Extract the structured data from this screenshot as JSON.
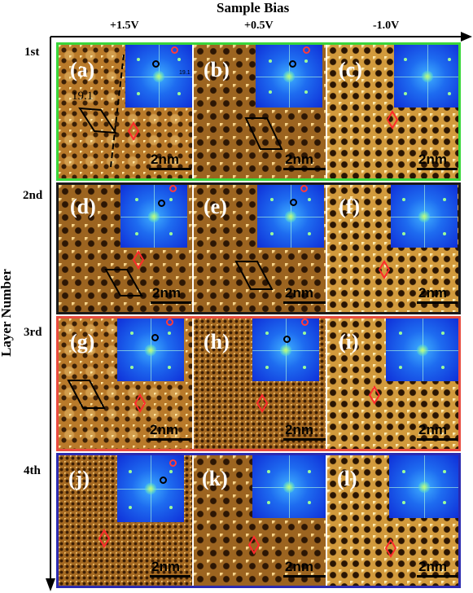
{
  "header": {
    "title": "Sample Bias"
  },
  "biases": [
    "+1.5V",
    "+0.5V",
    "-1.0V"
  ],
  "axis": {
    "ylabel": "Layer Number"
  },
  "layers": [
    "1st",
    "2nd",
    "3rd",
    "4th"
  ],
  "frame_colors": [
    "#39d63a",
    "#1b1b1b",
    "#e84b3f",
    "#2b2bb0"
  ],
  "panels": {
    "a": {
      "label": "(a)",
      "scale": "2nm",
      "angle": "19.1",
      "angle_unit": "°",
      "fft_angle": "19.1"
    },
    "b": {
      "label": "(b)",
      "scale": "2nm"
    },
    "c": {
      "label": "(c)",
      "scale": "2nm"
    },
    "d": {
      "label": "(d)",
      "scale": "2nm"
    },
    "e": {
      "label": "(e)",
      "scale": "2nm"
    },
    "f": {
      "label": "(f)",
      "scale": "2nm"
    },
    "g": {
      "label": "(g)",
      "scale": "2nm"
    },
    "h": {
      "label": "(h)",
      "scale": "2nm"
    },
    "i": {
      "label": "(i)",
      "scale": "2nm"
    },
    "j": {
      "label": "(j)",
      "scale": "2nm"
    },
    "k": {
      "label": "(k)",
      "scale": "2nm"
    },
    "l": {
      "label": "(l)",
      "scale": "2nm"
    }
  }
}
